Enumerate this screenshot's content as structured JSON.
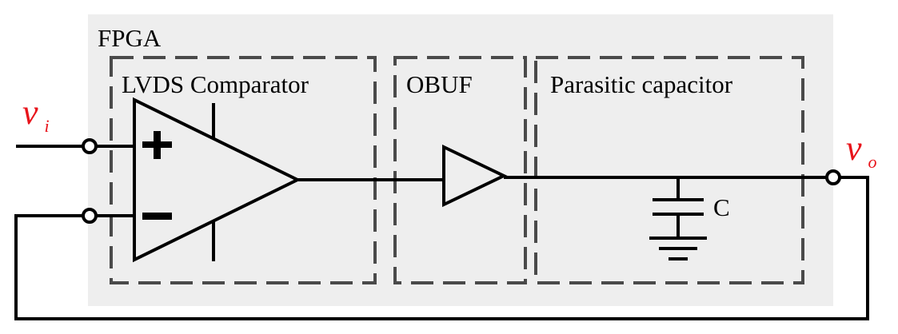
{
  "diagram": {
    "fpga_label": "FPGA",
    "comparator_label": "LVDS Comparator",
    "obuf_label": "OBUF",
    "parasitic_label": "Parasitic capacitor",
    "capacitor_label": "C",
    "input_signal": {
      "base": "v",
      "sub": "i"
    },
    "output_signal": {
      "base": "v",
      "sub": "o"
    }
  },
  "colors": {
    "fpga_background": "#eeeeee",
    "dashed_border": "#4a4a4a",
    "signal_label": "#e8141b",
    "wire": "#000000"
  }
}
